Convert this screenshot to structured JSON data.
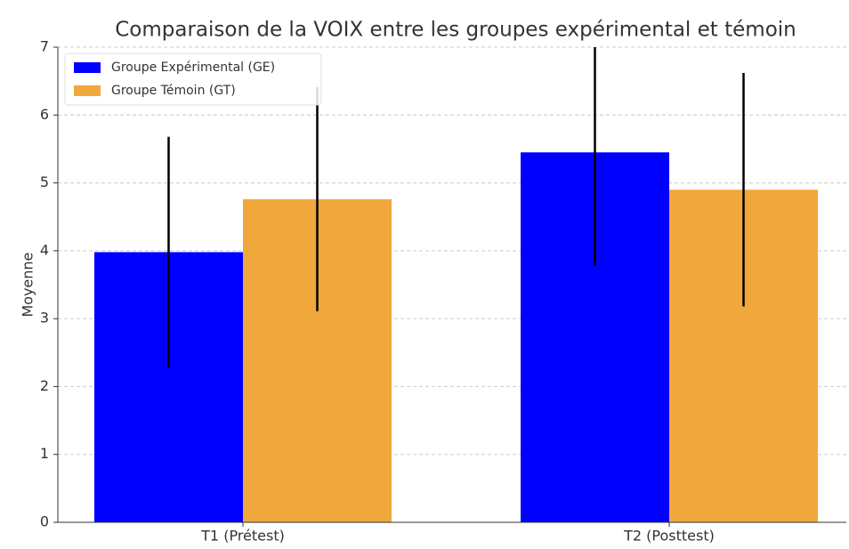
{
  "chart_data": {
    "type": "bar",
    "title": "Comparaison de la VOIX entre les groupes expérimental et témoin",
    "ylabel": "Moyenne",
    "categories": [
      "T1 (Prétest)",
      "T2 (Posttest)"
    ],
    "series": [
      {
        "name": "Groupe Expérimental (GE)",
        "color": "#0000ff",
        "values": [
          3.98,
          5.45
        ],
        "errors": [
          1.7,
          1.67
        ]
      },
      {
        "name": "Groupe Témoin (GT)",
        "color": "#f0a83c",
        "values": [
          4.76,
          4.9
        ],
        "errors": [
          1.65,
          1.72
        ]
      }
    ],
    "ylim": [
      0,
      7
    ],
    "yticks": [
      0,
      1,
      2,
      3,
      4,
      5,
      6,
      7
    ],
    "grid": true,
    "legend": "upper left"
  }
}
